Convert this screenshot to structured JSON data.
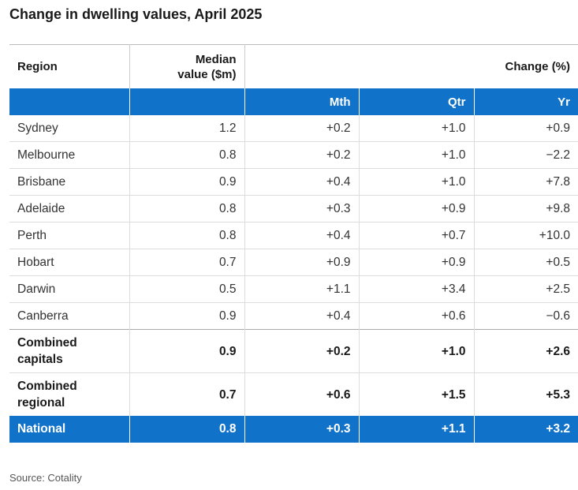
{
  "chart_data": {
    "type": "table",
    "title": "Change in dwelling values, April 2025",
    "header": {
      "region": "Region",
      "median_line1": "Median",
      "median_line2": "value ($m)",
      "change": "Change (%)",
      "mth": "Mth",
      "qtr": "Qtr",
      "yr": "Yr"
    },
    "rows": [
      {
        "region": "Sydney",
        "median": "1.2",
        "mth": "+0.2",
        "qtr": "+1.0",
        "yr": "+0.9"
      },
      {
        "region": "Melbourne",
        "median": "0.8",
        "mth": "+0.2",
        "qtr": "+1.0",
        "yr": "−2.2"
      },
      {
        "region": "Brisbane",
        "median": "0.9",
        "mth": "+0.4",
        "qtr": "+1.0",
        "yr": "+7.8"
      },
      {
        "region": "Adelaide",
        "median": "0.8",
        "mth": "+0.3",
        "qtr": "+0.9",
        "yr": "+9.8"
      },
      {
        "region": "Perth",
        "median": "0.8",
        "mth": "+0.4",
        "qtr": "+0.7",
        "yr": "+10.0"
      },
      {
        "region": "Hobart",
        "median": "0.7",
        "mth": "+0.9",
        "qtr": "+0.9",
        "yr": "+0.5"
      },
      {
        "region": "Darwin",
        "median": "0.5",
        "mth": "+1.1",
        "qtr": "+3.4",
        "yr": "+2.5"
      },
      {
        "region": "Canberra",
        "median": "0.9",
        "mth": "+0.4",
        "qtr": "+0.6",
        "yr": "−0.6"
      }
    ],
    "summary_rows": [
      {
        "region_line1": "Combined",
        "region_line2": "capitals",
        "median": "0.9",
        "mth": "+0.2",
        "qtr": "+1.0",
        "yr": "+2.6"
      },
      {
        "region_line1": "Combined",
        "region_line2": "regional",
        "median": "0.7",
        "mth": "+0.6",
        "qtr": "+1.5",
        "yr": "+5.3"
      }
    ],
    "national": {
      "region": "National",
      "median": "0.8",
      "mth": "+0.3",
      "qtr": "+1.1",
      "yr": "+3.2"
    },
    "source": "Source: Cotality"
  },
  "colors": {
    "accent_blue": "#1172c9",
    "text_dark": "#1a1a1a",
    "grid_line": "#dcdcdc"
  }
}
